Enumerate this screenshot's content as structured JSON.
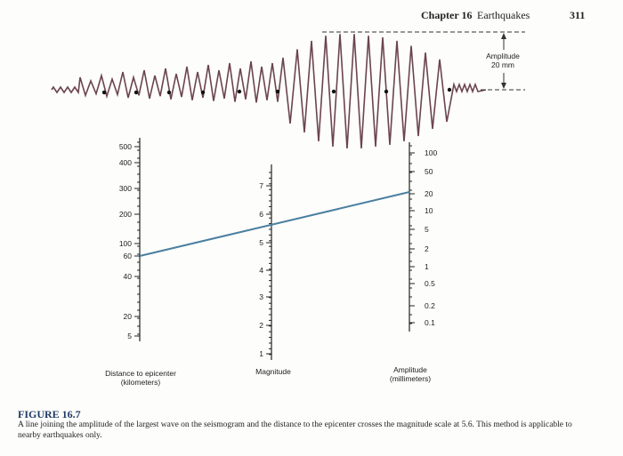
{
  "header": {
    "chapter": "Chapter 16",
    "section": "Earthquakes",
    "page": "311"
  },
  "seismogram": {
    "amplitude_label": "Amplitude",
    "amplitude_value": "20 mm",
    "trace_color": "#6b4451"
  },
  "nomogram": {
    "line_color": "#4a7fa0",
    "distance_axis": {
      "title": "Distance to epicenter (kilometers)",
      "ticks": [
        "500",
        "400",
        "300",
        "200",
        "100",
        "60",
        "40",
        "20",
        "5"
      ],
      "reading": "60"
    },
    "magnitude_axis": {
      "title": "Magnitude",
      "ticks": [
        "7",
        "6",
        "5",
        "4",
        "3",
        "2",
        "1"
      ],
      "reading": "5.6"
    },
    "amplitude_axis": {
      "title": "Amplitude (millimeters)",
      "ticks": [
        "100",
        "50",
        "20",
        "10",
        "5",
        "2",
        "1",
        "0.5",
        "0.2",
        "0.1"
      ],
      "reading": "20"
    }
  },
  "caption": {
    "title": "FIGURE 16.7",
    "body": "A line joining the amplitude of the largest wave on the seismogram and the distance to the epicenter crosses the magnitude scale at 5.6. This method is applicable to nearby earthquakes only."
  }
}
